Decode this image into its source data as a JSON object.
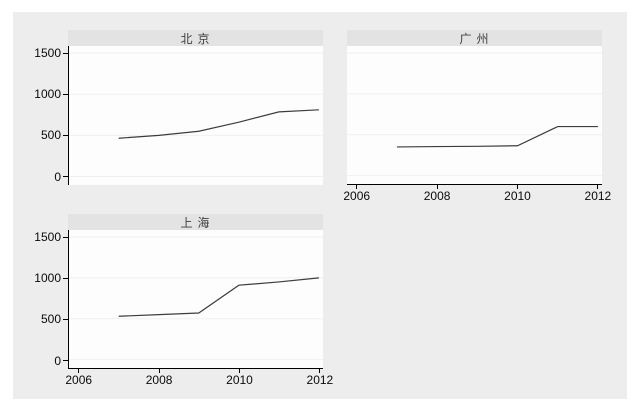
{
  "chart_data": {
    "type": "line",
    "layout": "stata-by-panels 2x2 grid, 3 panels, shared axes on outer edges",
    "x": [
      2007,
      2008,
      2009,
      2010,
      2011,
      2012
    ],
    "x_ticks": [
      2006,
      2008,
      2010,
      2012
    ],
    "y_ticks": [
      0,
      500,
      1000,
      1500
    ],
    "xlim": [
      2005.76,
      2012.1
    ],
    "ylim": [
      -105,
      1590
    ],
    "grid": true,
    "panels": [
      {
        "title": "北 京",
        "values": [
          465,
          500,
          550,
          660,
          785,
          810
        ],
        "show_x_labels": false,
        "show_y_labels": true
      },
      {
        "title": "广 州",
        "values": [
          350,
          355,
          358,
          365,
          600,
          600
        ],
        "show_x_labels": true,
        "show_y_labels": false
      },
      {
        "title": "上 海",
        "values": [
          530,
          550,
          570,
          910,
          950,
          1000
        ],
        "show_x_labels": true,
        "show_y_labels": true
      }
    ],
    "colors": {
      "region_bg": "#ededed",
      "strip_bg": "#e3e3e3",
      "plot_bg": "#fdfdfd",
      "grid": "#f0f0f0",
      "axis": "#000000",
      "line": "#3c3c3c"
    }
  }
}
